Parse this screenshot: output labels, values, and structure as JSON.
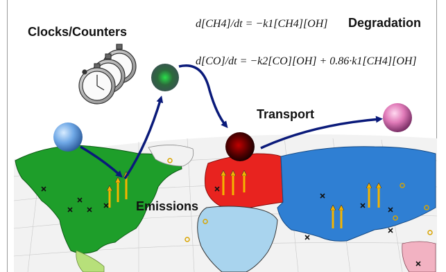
{
  "labels": {
    "clocks": "Clocks/Counters",
    "degradation": "Degradation",
    "transport": "Transport",
    "emissions": "Emissions"
  },
  "equations": {
    "ch4": "d[CH4]/dt = −k1[CH4][OH]",
    "co": "d[CO]/dt = −k2[CO][OH] + 0.86·k1[CH4][OH]"
  },
  "colors": {
    "ocean": "#f2f2f2",
    "north_america": "#1e9e2a",
    "europe": "#e8231f",
    "asia": "#2f7fd3",
    "africa": "#a9d4ee",
    "arrow": "#0a1a7a",
    "emission_arrow": "#f5b400"
  },
  "spheres": [
    {
      "name": "light-blue-sphere",
      "color": "#6fa8e6"
    },
    {
      "name": "dark-green-sphere",
      "color": "#2c6a3c"
    },
    {
      "name": "dark-red-sphere",
      "color": "#5a0000"
    },
    {
      "name": "pink-sphere",
      "color": "#e07ab8"
    }
  ]
}
